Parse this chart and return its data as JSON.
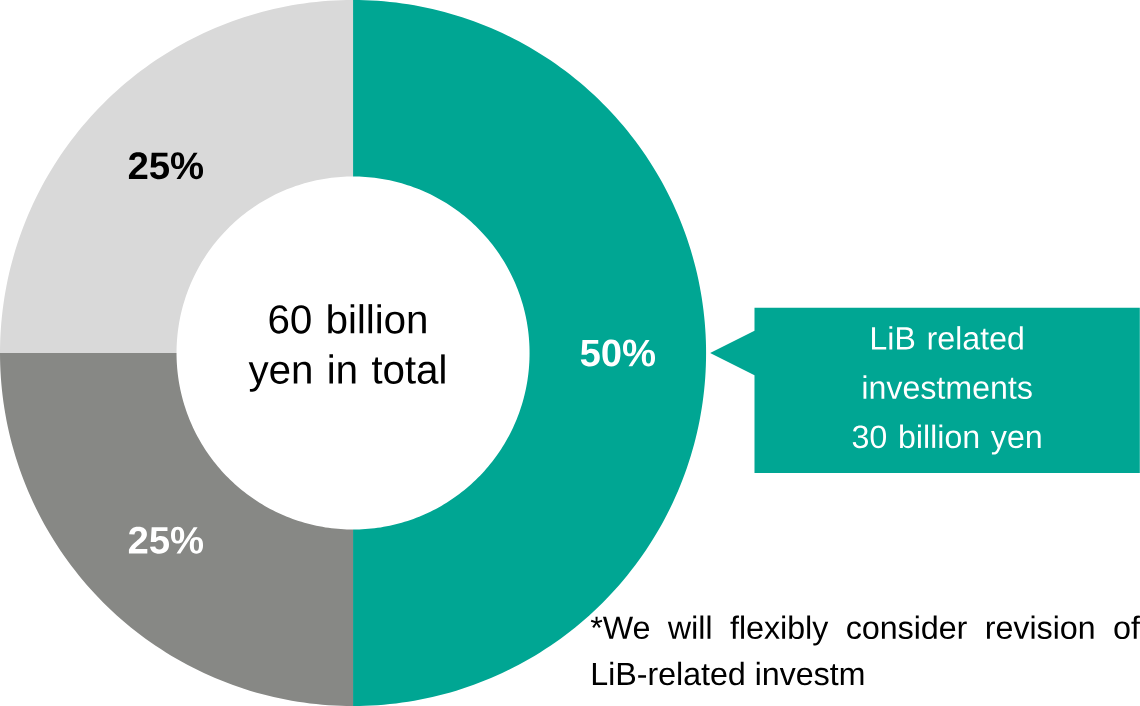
{
  "chart_data": {
    "type": "donut",
    "categories": [
      "LiB related investments 30 billion yen",
      null,
      null
    ],
    "values": [
      50,
      25,
      25
    ],
    "colors": [
      "#00a693",
      "#878885",
      "#d9d9d9"
    ],
    "value_labels": [
      "50%",
      "25%",
      "25%"
    ],
    "annotations": [
      "60 billion yen in total",
      "*We will flexibly consider revision of LiB-related investm"
    ]
  }
}
